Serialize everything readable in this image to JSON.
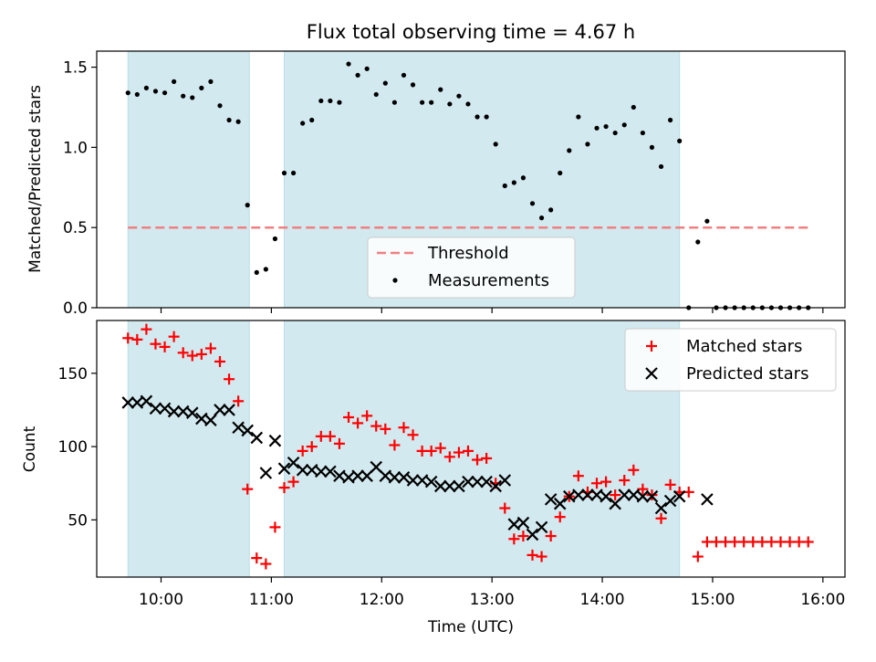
{
  "chart_data": [
    {
      "type": "scatter",
      "title": "Flux total observing time = 4.67 h",
      "xlabel": "",
      "ylabel": "Matched/Predicted stars",
      "ylim": [
        0,
        1.6
      ],
      "yticks": [
        "0.0",
        "0.5",
        "1.0",
        "1.5"
      ],
      "grid": false,
      "legend": {
        "placement": "bottom-center",
        "entries": [
          "Threshold",
          "Measurements"
        ]
      },
      "observing_windows": [
        [
          "09:42",
          "10:48"
        ],
        [
          "11:07",
          "14:42"
        ]
      ],
      "window_color": "#d2e9ef",
      "threshold": {
        "name": "Threshold",
        "value": 0.5,
        "x_range": [
          "09:42",
          "15:52"
        ],
        "color": "#f08080"
      },
      "series": [
        {
          "name": "Measurements",
          "color": "#000000",
          "x": [
            "09:42",
            "09:47",
            "09:52",
            "09:57",
            "10:02",
            "10:07",
            "10:12",
            "10:17",
            "10:22",
            "10:27",
            "10:32",
            "10:37",
            "10:42",
            "10:47",
            "10:52",
            "10:57",
            "11:02",
            "11:07",
            "11:12",
            "11:17",
            "11:22",
            "11:27",
            "11:32",
            "11:37",
            "11:42",
            "11:47",
            "11:52",
            "11:57",
            "12:02",
            "12:07",
            "12:12",
            "12:17",
            "12:22",
            "12:27",
            "12:32",
            "12:37",
            "12:42",
            "12:47",
            "12:52",
            "12:57",
            "13:02",
            "13:07",
            "13:12",
            "13:17",
            "13:22",
            "13:27",
            "13:32",
            "13:37",
            "13:42",
            "13:47",
            "13:52",
            "13:57",
            "14:02",
            "14:07",
            "14:12",
            "14:17",
            "14:22",
            "14:27",
            "14:32",
            "14:37",
            "14:42",
            "14:47",
            "14:52",
            "14:57",
            "15:02",
            "15:07",
            "15:12",
            "15:17",
            "15:22",
            "15:27",
            "15:32",
            "15:37",
            "15:42",
            "15:47",
            "15:52"
          ],
          "y": [
            1.34,
            1.33,
            1.37,
            1.35,
            1.34,
            1.41,
            1.32,
            1.31,
            1.37,
            1.41,
            1.26,
            1.17,
            1.16,
            0.64,
            0.22,
            0.24,
            0.43,
            0.84,
            0.84,
            1.15,
            1.17,
            1.29,
            1.29,
            1.28,
            1.52,
            1.45,
            1.49,
            1.33,
            1.4,
            1.28,
            1.45,
            1.39,
            1.28,
            1.28,
            1.36,
            1.27,
            1.32,
            1.27,
            1.19,
            1.19,
            1.02,
            0.76,
            0.78,
            0.81,
            0.65,
            0.56,
            0.61,
            0.84,
            0.98,
            1.19,
            1.02,
            1.12,
            1.13,
            1.09,
            1.14,
            1.25,
            1.09,
            1.0,
            0.88,
            1.17,
            1.04,
            0.0,
            0.41,
            0.54,
            0.0,
            0.0,
            0.0,
            0.0,
            0.0,
            0.0,
            0.0,
            0.0,
            0.0,
            0.0,
            0.0
          ]
        }
      ]
    },
    {
      "type": "scatter",
      "title": "",
      "xlabel": "Time (UTC)",
      "ylabel": "Count",
      "ylim": [
        11,
        186
      ],
      "yticks": [
        "50",
        "100",
        "150"
      ],
      "xlim": [
        "09:25",
        "16:12"
      ],
      "xticks": [
        "10:00",
        "11:00",
        "12:00",
        "13:00",
        "14:00",
        "15:00",
        "16:00"
      ],
      "grid": false,
      "legend": {
        "placement": "top-right",
        "entries": [
          "Matched stars",
          "Predicted stars"
        ]
      },
      "observing_windows": [
        [
          "09:42",
          "10:48"
        ],
        [
          "11:07",
          "14:42"
        ]
      ],
      "window_color": "#d2e9ef",
      "series": [
        {
          "name": "Matched stars",
          "marker": "+",
          "color": "#ff0000",
          "x": [
            "09:42",
            "09:47",
            "09:52",
            "09:57",
            "10:02",
            "10:07",
            "10:12",
            "10:17",
            "10:22",
            "10:27",
            "10:32",
            "10:37",
            "10:42",
            "10:47",
            "10:52",
            "10:57",
            "11:02",
            "11:07",
            "11:12",
            "11:17",
            "11:22",
            "11:27",
            "11:32",
            "11:37",
            "11:42",
            "11:47",
            "11:52",
            "11:57",
            "12:02",
            "12:07",
            "12:12",
            "12:17",
            "12:22",
            "12:27",
            "12:32",
            "12:37",
            "12:42",
            "12:47",
            "12:52",
            "12:57",
            "13:02",
            "13:07",
            "13:12",
            "13:17",
            "13:22",
            "13:27",
            "13:32",
            "13:37",
            "13:42",
            "13:47",
            "13:52",
            "13:57",
            "14:02",
            "14:07",
            "14:12",
            "14:17",
            "14:22",
            "14:27",
            "14:32",
            "14:37",
            "14:42",
            "14:47",
            "14:52",
            "14:57",
            "15:02",
            "15:07",
            "15:12",
            "15:17",
            "15:22",
            "15:27",
            "15:32",
            "15:37",
            "15:42",
            "15:47",
            "15:52"
          ],
          "y": [
            174,
            173,
            180,
            170,
            168,
            175,
            164,
            162,
            163,
            167,
            158,
            146,
            131,
            71,
            24,
            20,
            45,
            72,
            76,
            97,
            100,
            107,
            107,
            102,
            120,
            116,
            121,
            114,
            112,
            101,
            113,
            108,
            97,
            97,
            99,
            93,
            96,
            97,
            91,
            92,
            75,
            58,
            37,
            39,
            26,
            25,
            39,
            52,
            66,
            80,
            69,
            75,
            76,
            67,
            77,
            84,
            71,
            67,
            51,
            74,
            69,
            69,
            25,
            35,
            35,
            35,
            35,
            35,
            35,
            35,
            35,
            35,
            35,
            35,
            35
          ]
        },
        {
          "name": "Predicted stars",
          "marker": "x",
          "color": "#000000",
          "x": [
            "09:42",
            "09:47",
            "09:52",
            "09:57",
            "10:02",
            "10:07",
            "10:12",
            "10:17",
            "10:22",
            "10:27",
            "10:32",
            "10:37",
            "10:42",
            "10:47",
            "10:52",
            "10:57",
            "11:02",
            "11:07",
            "11:12",
            "11:17",
            "11:22",
            "11:27",
            "11:32",
            "11:37",
            "11:42",
            "11:47",
            "11:52",
            "11:57",
            "12:02",
            "12:07",
            "12:12",
            "12:17",
            "12:22",
            "12:27",
            "12:32",
            "12:37",
            "12:42",
            "12:47",
            "12:52",
            "12:57",
            "13:02",
            "13:07",
            "13:12",
            "13:17",
            "13:22",
            "13:27",
            "13:32",
            "13:37",
            "13:42",
            "13:47",
            "13:52",
            "13:57",
            "14:02",
            "14:07",
            "14:12",
            "14:17",
            "14:22",
            "14:27",
            "14:32",
            "14:37",
            "14:42",
            "14:57"
          ],
          "y": [
            130,
            130,
            131,
            126,
            126,
            124,
            124,
            123,
            119,
            118,
            125,
            125,
            113,
            111,
            106,
            82,
            104,
            85,
            89,
            84,
            84,
            83,
            83,
            80,
            79,
            80,
            80,
            86,
            80,
            79,
            79,
            77,
            77,
            76,
            73,
            73,
            73,
            76,
            76,
            76,
            73,
            77,
            47,
            48,
            40,
            45,
            64,
            61,
            66,
            67,
            67,
            67,
            66,
            61,
            67,
            67,
            66,
            66,
            58,
            63,
            66,
            64
          ]
        }
      ]
    }
  ]
}
